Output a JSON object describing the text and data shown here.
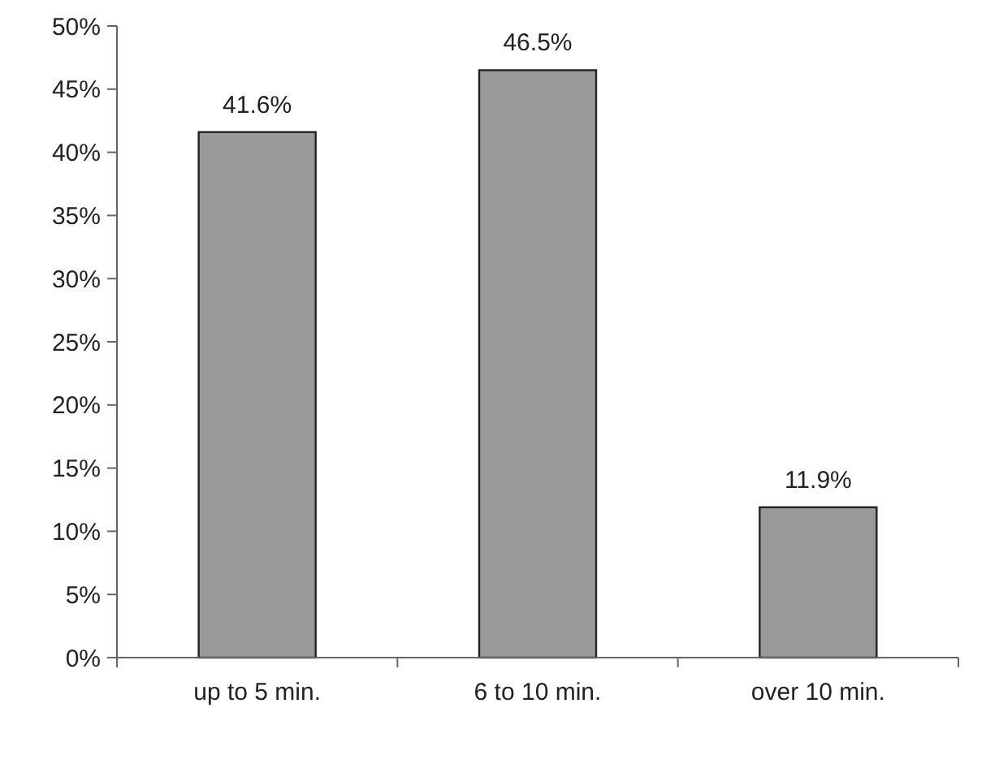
{
  "chart_data": {
    "type": "bar",
    "categories": [
      "up to 5 min.",
      "6 to 10 min.",
      "over 10 min."
    ],
    "values": [
      41.6,
      46.5,
      11.9
    ],
    "value_labels": [
      "41.6%",
      "46.5%",
      "11.9%"
    ],
    "color": "#9a9a9a",
    "ylim": [
      0,
      50
    ],
    "yticks": [
      {
        "value": 0,
        "label": "0%"
      },
      {
        "value": 5,
        "label": "5%"
      },
      {
        "value": 10,
        "label": "10%"
      },
      {
        "value": 15,
        "label": "15%"
      },
      {
        "value": 20,
        "label": "20%"
      },
      {
        "value": 25,
        "label": "25%"
      },
      {
        "value": 30,
        "label": "30%"
      },
      {
        "value": 35,
        "label": "35%"
      },
      {
        "value": 40,
        "label": "40%"
      },
      {
        "value": 45,
        "label": "45%"
      },
      {
        "value": 50,
        "label": "50%"
      }
    ],
    "grid": false
  }
}
